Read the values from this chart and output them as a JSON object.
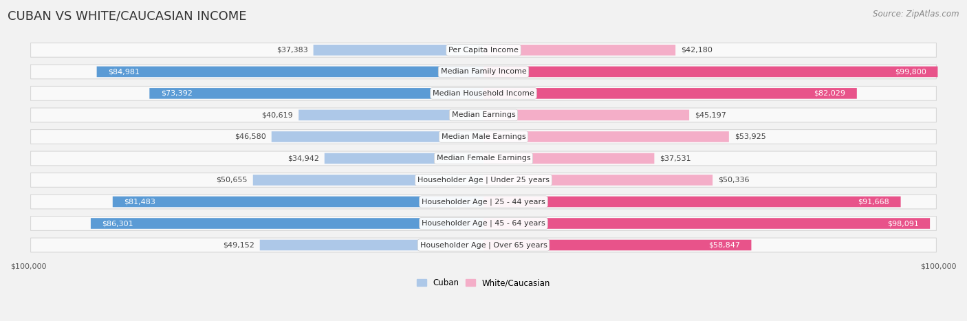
{
  "title": "CUBAN VS WHITE/CAUCASIAN INCOME",
  "source": "Source: ZipAtlas.com",
  "categories": [
    "Per Capita Income",
    "Median Family Income",
    "Median Household Income",
    "Median Earnings",
    "Median Male Earnings",
    "Median Female Earnings",
    "Householder Age | Under 25 years",
    "Householder Age | 25 - 44 years",
    "Householder Age | 45 - 64 years",
    "Householder Age | Over 65 years"
  ],
  "cuban_values": [
    37383,
    84981,
    73392,
    40619,
    46580,
    34942,
    50655,
    81483,
    86301,
    49152
  ],
  "white_values": [
    42180,
    99800,
    82029,
    45197,
    53925,
    37531,
    50336,
    91668,
    98091,
    58847
  ],
  "cuban_color_light": "#adc8e8",
  "cuban_color_dark": "#5b9bd5",
  "white_color_light": "#f4aec8",
  "white_color_dark": "#e8538a",
  "max_value": 100000,
  "bg_color": "#f2f2f2",
  "row_bg_light": "#f9f9f9",
  "row_border": "#d8d8d8",
  "title_fontsize": 13,
  "source_fontsize": 8.5,
  "bar_label_fontsize": 8,
  "category_fontsize": 8,
  "legend_fontsize": 8.5,
  "axis_label_fontsize": 8,
  "cuban_threshold": 55000,
  "white_threshold": 55000
}
